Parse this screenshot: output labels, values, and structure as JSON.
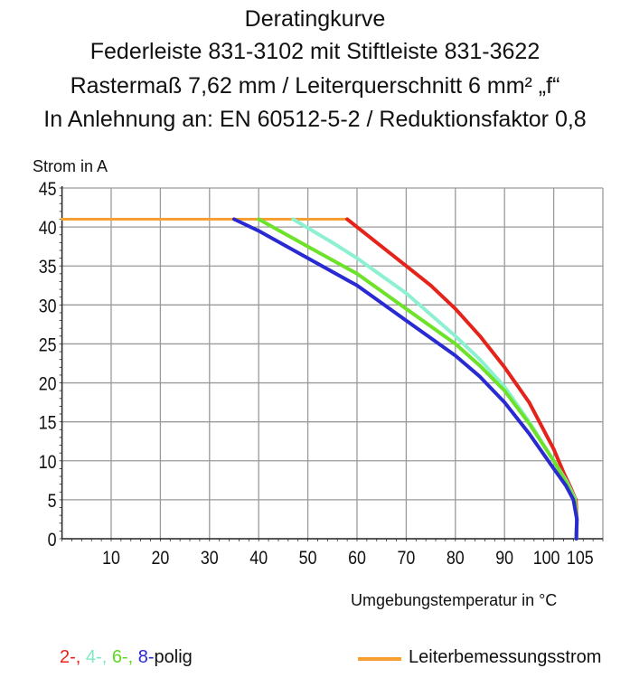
{
  "titles": [
    "Deratingkurve",
    "Federleiste 831-3102 mit Stiftleiste 831-3622",
    "Rastermaß 7,62 mm / Leiterquerschnitt 6 mm² „f“",
    "In Anlehnung an: EN 60512-5-2 / Reduktionsfaktor 0,8"
  ],
  "chart_data": {
    "type": "line",
    "title": "Deratingkurve",
    "xlabel": "Umgebungstemperatur in °C",
    "ylabel": "Strom in A",
    "xlim": [
      0,
      110
    ],
    "ylim": [
      0,
      45
    ],
    "xticks": [
      10,
      20,
      30,
      40,
      50,
      60,
      70,
      80,
      90,
      100,
      105
    ],
    "yticks": [
      0,
      5,
      10,
      15,
      20,
      25,
      30,
      35,
      40,
      45
    ],
    "grid": true,
    "series": [
      {
        "name": "Leiterbemessungsstrom",
        "color": "#f5a030",
        "points": [
          [
            0,
            41
          ],
          [
            58,
            41
          ]
        ]
      },
      {
        "name": "2-",
        "color": "#e5231b",
        "points": [
          [
            58,
            41
          ],
          [
            65,
            37.5
          ],
          [
            70,
            35
          ],
          [
            75,
            32.5
          ],
          [
            80,
            29.5
          ],
          [
            85,
            26
          ],
          [
            90,
            22
          ],
          [
            95,
            17.5
          ],
          [
            100,
            11.5
          ],
          [
            102,
            8.5
          ],
          [
            103.5,
            6.5
          ],
          [
            104.5,
            5
          ],
          [
            104.7,
            2.5
          ],
          [
            104.6,
            0
          ]
        ]
      },
      {
        "name": "4-",
        "color": "#8ef0d2",
        "points": [
          [
            47,
            41
          ],
          [
            55,
            38
          ],
          [
            60,
            36
          ],
          [
            70,
            31.5
          ],
          [
            80,
            26
          ],
          [
            85,
            23
          ],
          [
            90,
            19.5
          ],
          [
            95,
            15
          ],
          [
            100,
            10
          ],
          [
            102.5,
            7.5
          ],
          [
            104.3,
            5.2
          ],
          [
            104.7,
            2.5
          ],
          [
            104.6,
            0
          ]
        ]
      },
      {
        "name": "6-",
        "color": "#6de22a",
        "points": [
          [
            40,
            41
          ],
          [
            50,
            37.5
          ],
          [
            60,
            34
          ],
          [
            70,
            29.5
          ],
          [
            80,
            25
          ],
          [
            85,
            22.2
          ],
          [
            90,
            19
          ],
          [
            95,
            14.8
          ],
          [
            100,
            10
          ],
          [
            102.5,
            7.3
          ],
          [
            104.3,
            5
          ],
          [
            104.7,
            2.5
          ],
          [
            104.6,
            0
          ]
        ]
      },
      {
        "name": "8-",
        "color": "#2a2ad2",
        "points": [
          [
            35,
            41
          ],
          [
            40,
            39.5
          ],
          [
            50,
            36
          ],
          [
            60,
            32.5
          ],
          [
            70,
            28
          ],
          [
            80,
            23.5
          ],
          [
            85,
            20.8
          ],
          [
            90,
            17.5
          ],
          [
            95,
            13.5
          ],
          [
            100,
            9
          ],
          [
            102.5,
            6.8
          ],
          [
            104,
            5
          ],
          [
            104.7,
            2.5
          ],
          [
            104.6,
            0
          ]
        ]
      }
    ]
  },
  "legend": {
    "parts": [
      "2-,",
      "4-,",
      "6-,",
      "8-"
    ],
    "suffix": "polig",
    "line_label": "Leiterbemessungsstrom"
  }
}
